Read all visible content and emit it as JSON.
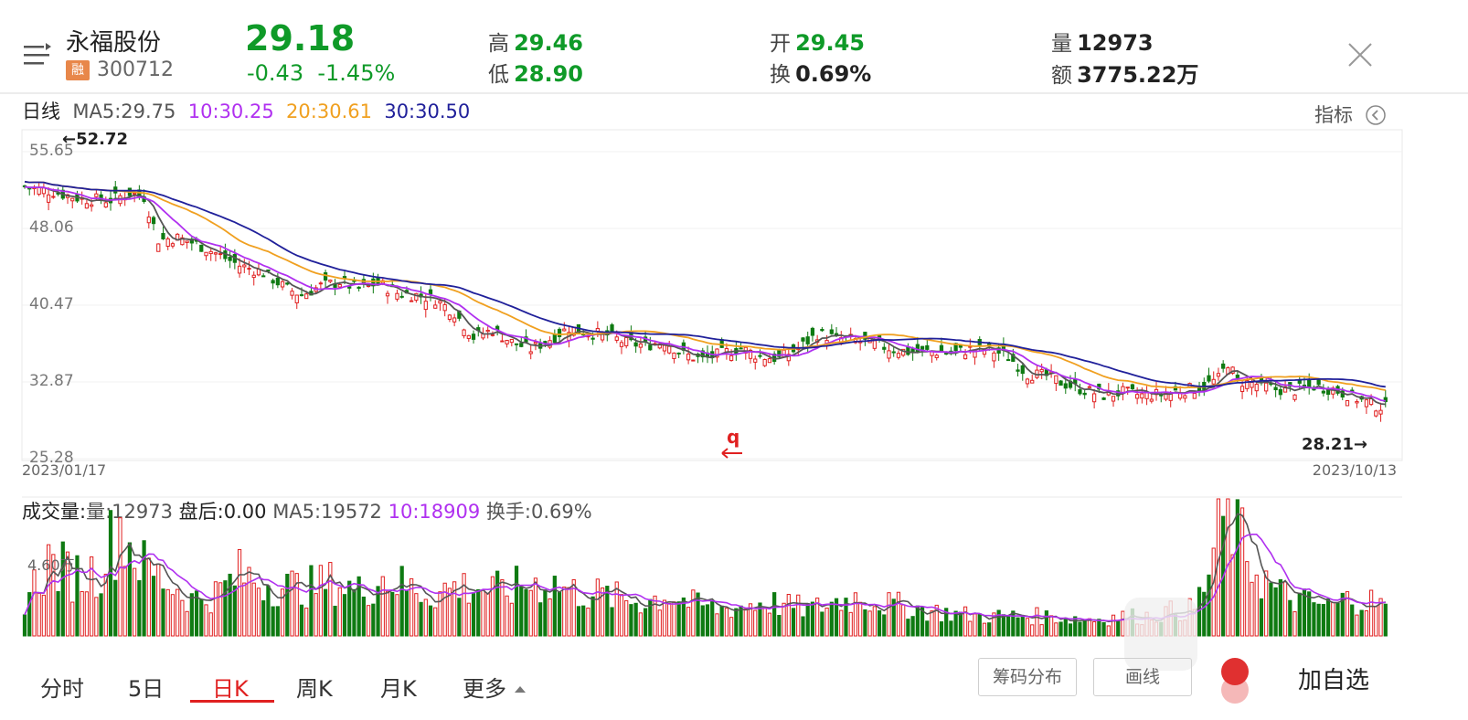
{
  "stock": {
    "name": "永福股份",
    "badge": "融",
    "code": "300712",
    "price": "29.18",
    "change": "-0.43",
    "change_pct": "-1.45%"
  },
  "quote": {
    "high_label": "高",
    "high": "29.46",
    "low_label": "低",
    "low": "28.90",
    "open_label": "开",
    "open": "29.45",
    "turnover_label": "换",
    "turnover": "0.69%",
    "volume_label": "量",
    "volume": "12973",
    "amount_label": "额",
    "amount": "3775.22万"
  },
  "ma_legend": {
    "period": "日线",
    "ma5": "MA5:29.75",
    "ma10": "10:30.25",
    "ma20": "20:30.61",
    "ma30": "30:30.50"
  },
  "indicator_label": "指标",
  "price_axis": [
    "55.65",
    "48.06",
    "40.47",
    "32.87",
    "25.28"
  ],
  "date_start": "2023/01/17",
  "date_end": "2023/10/13",
  "max_marker": "←52.72",
  "min_marker": "28.21→",
  "vol_legend": {
    "title": "成交量:",
    "vol": "量:12973",
    "after": "盘后:0.00",
    "ma5": "MA5:19572",
    "ma10": "10:18909",
    "turn": "换手:0.69%"
  },
  "vol_axis_label": "4.60万",
  "tabs": [
    "分时",
    "5日",
    "日K",
    "周K",
    "月K",
    "更多"
  ],
  "active_tab": "日K",
  "buttons": {
    "chips": "筹码分布",
    "draw": "画线",
    "add": "加自选"
  },
  "colors": {
    "up": "#e02020",
    "down": "#0f7a12",
    "ma5": "#555555",
    "ma10": "#b030f0",
    "ma20": "#f0a020",
    "ma30": "#20209a"
  },
  "chart_data": {
    "type": "candlestick",
    "x_range": [
      "2023/01/17",
      "2023/10/13"
    ],
    "ylim": [
      25.28,
      55.65
    ],
    "ma_periods": [
      5,
      10,
      20,
      30
    ],
    "keypoints": [
      [
        0,
        50.8
      ],
      [
        6,
        50.3
      ],
      [
        12,
        49.6
      ],
      [
        18,
        49.5
      ],
      [
        22,
        50.2
      ],
      [
        25,
        49.8
      ],
      [
        28,
        45.6
      ],
      [
        32,
        45.8
      ],
      [
        36,
        45.2
      ],
      [
        40,
        44.3
      ],
      [
        45,
        43.1
      ],
      [
        50,
        42.4
      ],
      [
        55,
        40.8
      ],
      [
        58,
        40.2
      ],
      [
        62,
        41.1
      ],
      [
        66,
        41.5
      ],
      [
        70,
        40.8
      ],
      [
        74,
        41.4
      ],
      [
        78,
        40.4
      ],
      [
        82,
        40.2
      ],
      [
        86,
        39.8
      ],
      [
        90,
        38.5
      ],
      [
        94,
        36.1
      ],
      [
        98,
        36.8
      ],
      [
        102,
        35.6
      ],
      [
        106,
        34.9
      ],
      [
        110,
        35.9
      ],
      [
        114,
        37.0
      ],
      [
        118,
        36.5
      ],
      [
        122,
        36.3
      ],
      [
        126,
        35.5
      ],
      [
        130,
        35.3
      ],
      [
        134,
        35.7
      ],
      [
        138,
        34.4
      ],
      [
        142,
        33.9
      ],
      [
        146,
        34.5
      ],
      [
        150,
        35.0
      ],
      [
        154,
        34.2
      ],
      [
        158,
        34.0
      ],
      [
        162,
        35.0
      ],
      [
        166,
        36.4
      ],
      [
        170,
        36.0
      ],
      [
        174,
        35.8
      ],
      [
        178,
        35.4
      ],
      [
        182,
        34.9
      ],
      [
        186,
        34.6
      ],
      [
        190,
        34.7
      ],
      [
        194,
        34.5
      ],
      [
        198,
        34.9
      ],
      [
        202,
        34.9
      ],
      [
        206,
        34.2
      ],
      [
        210,
        32.5
      ],
      [
        214,
        32.3
      ],
      [
        218,
        31.5
      ],
      [
        222,
        30.9
      ],
      [
        226,
        30.4
      ],
      [
        230,
        30.7
      ],
      [
        234,
        30.4
      ],
      [
        238,
        30.5
      ],
      [
        242,
        30.9
      ],
      [
        246,
        31.1
      ],
      [
        250,
        32.0
      ],
      [
        252,
        33.6
      ],
      [
        254,
        31.8
      ],
      [
        258,
        31.5
      ],
      [
        262,
        31.0
      ],
      [
        266,
        30.9
      ],
      [
        270,
        31.3
      ],
      [
        274,
        31.0
      ],
      [
        278,
        30.3
      ],
      [
        282,
        29.5
      ],
      [
        285,
        29.2
      ]
    ],
    "volume_keypoints": [
      [
        0,
        15000
      ],
      [
        5,
        30000
      ],
      [
        10,
        25000
      ],
      [
        15,
        26000
      ],
      [
        20,
        45000
      ],
      [
        25,
        28000
      ],
      [
        30,
        22000
      ],
      [
        35,
        15000
      ],
      [
        40,
        17000
      ],
      [
        45,
        25000
      ],
      [
        50,
        22000
      ],
      [
        55,
        20000
      ],
      [
        60,
        20000
      ],
      [
        65,
        22000
      ],
      [
        70,
        18000
      ],
      [
        75,
        24000
      ],
      [
        80,
        20000
      ],
      [
        85,
        17000
      ],
      [
        90,
        20000
      ],
      [
        95,
        20000
      ],
      [
        100,
        18000
      ],
      [
        105,
        21000
      ],
      [
        110,
        22000
      ],
      [
        115,
        18000
      ],
      [
        120,
        17000
      ],
      [
        125,
        15000
      ],
      [
        130,
        14000
      ],
      [
        135,
        17000
      ],
      [
        140,
        13000
      ],
      [
        145,
        11000
      ],
      [
        150,
        12000
      ],
      [
        155,
        14000
      ],
      [
        160,
        12000
      ],
      [
        165,
        11000
      ],
      [
        170,
        14000
      ],
      [
        175,
        16000
      ],
      [
        180,
        13000
      ],
      [
        185,
        12000
      ],
      [
        190,
        10000
      ],
      [
        195,
        9000
      ],
      [
        200,
        8000
      ],
      [
        205,
        8000
      ],
      [
        210,
        8000
      ],
      [
        215,
        8000
      ],
      [
        220,
        7000
      ],
      [
        225,
        7000
      ],
      [
        230,
        8000
      ],
      [
        235,
        8000
      ],
      [
        240,
        10000
      ],
      [
        245,
        11000
      ],
      [
        248,
        25000
      ],
      [
        250,
        42000
      ],
      [
        252,
        55000
      ],
      [
        254,
        40000
      ],
      [
        258,
        27000
      ],
      [
        262,
        18000
      ],
      [
        266,
        15000
      ],
      [
        270,
        13000
      ],
      [
        274,
        12000
      ],
      [
        278,
        16000
      ],
      [
        282,
        14000
      ],
      [
        285,
        12973
      ]
    ]
  }
}
